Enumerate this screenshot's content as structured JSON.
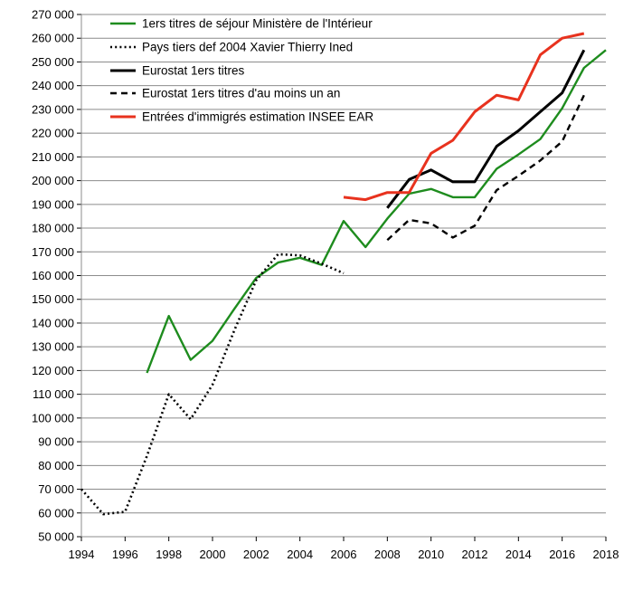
{
  "chart_data": {
    "type": "line",
    "title": "",
    "xlabel": "",
    "ylabel": "",
    "xlim": [
      1994,
      2018
    ],
    "ylim": [
      50000,
      270000
    ],
    "x_ticks": [
      1994,
      1996,
      1998,
      2000,
      2002,
      2004,
      2006,
      2008,
      2010,
      2012,
      2014,
      2016,
      2018
    ],
    "x_tick_labels": [
      "1994",
      "1996",
      "1998",
      "2000",
      "2002",
      "2004",
      "2006",
      "2008",
      "2010",
      "2012",
      "2014",
      "2016",
      "2018"
    ],
    "y_ticks": [
      50000,
      60000,
      70000,
      80000,
      90000,
      100000,
      110000,
      120000,
      130000,
      140000,
      150000,
      160000,
      170000,
      180000,
      190000,
      200000,
      210000,
      220000,
      230000,
      240000,
      250000,
      260000,
      270000
    ],
    "y_tick_labels": [
      "50 000",
      "60 000",
      "70 000",
      "80 000",
      "90 000",
      "100 000",
      "110 000",
      "120 000",
      "130 000",
      "140 000",
      "150 000",
      "160 000",
      "170 000",
      "180 000",
      "190 000",
      "200 000",
      "210 000",
      "220 000",
      "230 000",
      "240 000",
      "250 000",
      "260 000",
      "270 000"
    ],
    "grid": "horizontal",
    "legend_position": "top-left",
    "series": [
      {
        "name": "1ers titres de séjour Ministère  de l'Intérieur",
        "color": "#1e8c1e",
        "style": "solid",
        "x": [
          1997,
          1998,
          1999,
          2000,
          2001,
          2002,
          2003,
          2004,
          2005,
          2006,
          2007,
          2008,
          2009,
          2010,
          2011,
          2012,
          2013,
          2014,
          2015,
          2016,
          2017,
          2018
        ],
        "y": [
          119000,
          143000,
          124500,
          132500,
          146000,
          159000,
          165500,
          167500,
          164500,
          183000,
          172000,
          184000,
          194500,
          196500,
          193000,
          193000,
          205000,
          211000,
          217500,
          230500,
          247500,
          255000
        ]
      },
      {
        "name": "Pays tiers def 2004 Xavier Thierry  Ined",
        "color": "#000000",
        "style": "dotted",
        "x": [
          1994,
          1995,
          1996,
          1997,
          1998,
          1999,
          2000,
          2001,
          2002,
          2003,
          2004,
          2005,
          2006
        ],
        "y": [
          70000,
          59500,
          60500,
          84000,
          110000,
          99500,
          114000,
          137000,
          158000,
          169000,
          168500,
          165000,
          161000
        ]
      },
      {
        "name": "Eurostat 1ers titres",
        "color": "#000000",
        "style": "solid-thick",
        "x": [
          2008,
          2009,
          2010,
          2011,
          2012,
          2013,
          2014,
          2015,
          2016,
          2017
        ],
        "y": [
          188500,
          200500,
          204500,
          199500,
          199500,
          214500,
          221000,
          229000,
          237000,
          255000
        ]
      },
      {
        "name": "Eurostat 1ers titres d'au moins un an",
        "color": "#000000",
        "style": "dashed",
        "x": [
          2008,
          2009,
          2010,
          2011,
          2012,
          2013,
          2014,
          2015,
          2016,
          2017
        ],
        "y": [
          175000,
          183500,
          182000,
          176000,
          181000,
          196000,
          202000,
          208500,
          216500,
          236000
        ]
      },
      {
        "name": "Entrées d'immigrés estimation INSEE EAR",
        "color": "#e8321e",
        "style": "solid-thick",
        "x": [
          2006,
          2007,
          2008,
          2009,
          2010,
          2011,
          2012,
          2013,
          2014,
          2015,
          2016,
          2017
        ],
        "y": [
          193000,
          192000,
          195000,
          195000,
          211500,
          217000,
          229000,
          236000,
          234000,
          253000,
          260000,
          262000
        ]
      }
    ]
  }
}
